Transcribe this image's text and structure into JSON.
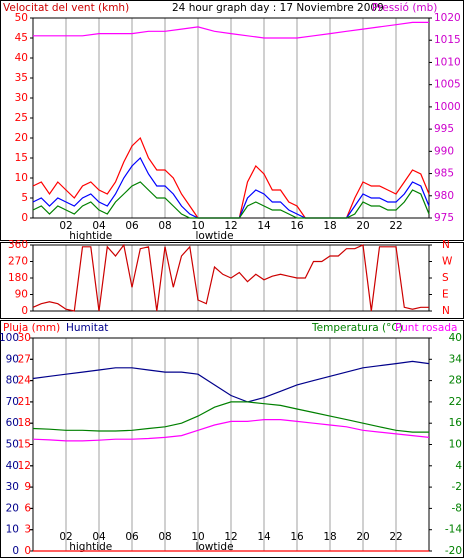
{
  "chart_data": [
    {
      "type": "line",
      "title": "24 hour graph day : 17 Noviembre 2009",
      "y_label": "Velocitat del vent (kmh)",
      "y2_label": "Pressió (mb)",
      "xlim": [
        0,
        24
      ],
      "xticks": [
        {
          "value": 2,
          "label": "02"
        },
        {
          "value": 4,
          "label": "04"
        },
        {
          "value": 6,
          "label": "06"
        },
        {
          "value": 8,
          "label": "08"
        },
        {
          "value": 10,
          "label": "10"
        },
        {
          "value": 12,
          "label": "12"
        },
        {
          "value": 14,
          "label": "14"
        },
        {
          "value": 16,
          "label": "16"
        },
        {
          "value": 18,
          "label": "18"
        },
        {
          "value": 20,
          "label": "20"
        },
        {
          "value": 22,
          "label": "22"
        }
      ],
      "ylim": [
        0,
        50
      ],
      "yticks": [
        0,
        5,
        10,
        15,
        20,
        25,
        30,
        35,
        40,
        45,
        50
      ],
      "y2lim": [
        975,
        1020
      ],
      "y2ticks": [
        975,
        980,
        985,
        990,
        995,
        1000,
        1005,
        1010,
        1015,
        1020
      ],
      "axis_colors": {
        "y": "#ff0000",
        "y2": "#cc00cc"
      },
      "grid": true,
      "annotations": [
        {
          "x": 3.5,
          "text": "hightide"
        },
        {
          "x": 11,
          "text": "lowtide"
        }
      ],
      "series": [
        {
          "color": "#ff0000",
          "x": [
            0,
            0.5,
            1,
            1.5,
            2,
            2.5,
            3,
            3.5,
            4,
            4.5,
            5,
            5.5,
            6,
            6.5,
            7,
            7.5,
            8,
            8.5,
            9,
            9.5,
            10,
            10.5,
            11,
            11.5,
            12,
            12.5,
            13,
            13.5,
            14,
            14.5,
            15,
            15.5,
            16,
            16.5,
            17,
            17.5,
            18,
            18.5,
            19,
            19.5,
            20,
            20.5,
            21,
            21.5,
            22,
            22.5,
            23,
            23.5,
            24
          ],
          "values": [
            8,
            9,
            6,
            9,
            7,
            5,
            8,
            9,
            7,
            6,
            9,
            14,
            18,
            20,
            15,
            12,
            12,
            10,
            6,
            3,
            0,
            0,
            0,
            0,
            0,
            0,
            9,
            13,
            11,
            7,
            7,
            4,
            3,
            0,
            0,
            0,
            0,
            0,
            0,
            5,
            9,
            8,
            8,
            7,
            6,
            9,
            12,
            11,
            6
          ]
        },
        {
          "color": "#0000ff",
          "x": [
            0,
            0.5,
            1,
            1.5,
            2,
            2.5,
            3,
            3.5,
            4,
            4.5,
            5,
            5.5,
            6,
            6.5,
            7,
            7.5,
            8,
            8.5,
            9,
            9.5,
            10,
            10.5,
            11,
            11.5,
            12,
            12.5,
            13,
            13.5,
            14,
            14.5,
            15,
            15.5,
            16,
            16.5,
            17,
            17.5,
            18,
            18.5,
            19,
            19.5,
            20,
            20.5,
            21,
            21.5,
            22,
            22.5,
            23,
            23.5,
            24
          ],
          "values": [
            4,
            5,
            3,
            5,
            4,
            3,
            5,
            6,
            4,
            3,
            6,
            10,
            13,
            15,
            11,
            8,
            8,
            6,
            3,
            1,
            0,
            0,
            0,
            0,
            0,
            0,
            5,
            7,
            6,
            4,
            4,
            2,
            1,
            0,
            0,
            0,
            0,
            0,
            0,
            3,
            6,
            5,
            5,
            4,
            4,
            6,
            9,
            8,
            3
          ]
        },
        {
          "color": "#008000",
          "x": [
            0,
            0.5,
            1,
            1.5,
            2,
            2.5,
            3,
            3.5,
            4,
            4.5,
            5,
            5.5,
            6,
            6.5,
            7,
            7.5,
            8,
            8.5,
            9,
            9.5,
            10,
            10.5,
            11,
            11.5,
            12,
            12.5,
            13,
            13.5,
            14,
            14.5,
            15,
            15.5,
            16,
            16.5,
            17,
            17.5,
            18,
            18.5,
            19,
            19.5,
            20,
            20.5,
            21,
            21.5,
            22,
            22.5,
            23,
            23.5,
            24
          ],
          "values": [
            2,
            3,
            1,
            3,
            2,
            1,
            3,
            4,
            2,
            1,
            4,
            6,
            8,
            9,
            7,
            5,
            5,
            3,
            1,
            0,
            0,
            0,
            0,
            0,
            0,
            0,
            3,
            4,
            3,
            2,
            2,
            1,
            0,
            0,
            0,
            0,
            0,
            0,
            0,
            1,
            4,
            3,
            3,
            2,
            2,
            4,
            7,
            6,
            1
          ]
        },
        {
          "color": "#ff00ff",
          "axis": "y2",
          "x": [
            0,
            1,
            2,
            3,
            4,
            5,
            6,
            7,
            8,
            9,
            10,
            11,
            12,
            13,
            14,
            15,
            16,
            17,
            18,
            19,
            20,
            21,
            22,
            23,
            24
          ],
          "values": [
            1016,
            1016,
            1016,
            1016,
            1016.5,
            1016.5,
            1016.5,
            1017,
            1017,
            1017.5,
            1018,
            1017,
            1016.5,
            1016,
            1015.5,
            1015.5,
            1015.5,
            1016,
            1016.5,
            1017,
            1017.5,
            1018,
            1018.5,
            1019,
            1019
          ]
        }
      ]
    },
    {
      "type": "line",
      "xlim": [
        0,
        24
      ],
      "ylim": [
        0,
        360
      ],
      "yticks": [
        0,
        90,
        180,
        270,
        360
      ],
      "y2lim": [
        0,
        360
      ],
      "y2ticks": [
        {
          "value": 0,
          "label": "N"
        },
        {
          "value": 90,
          "label": "E"
        },
        {
          "value": 180,
          "label": "S"
        },
        {
          "value": 270,
          "label": "W"
        },
        {
          "value": 360,
          "label": "N"
        }
      ],
      "axis_colors": {
        "y": "#ff0000",
        "y2": "#ff0000"
      },
      "grid": true,
      "series": [
        {
          "color": "#cc0000",
          "x": [
            0,
            0.5,
            1,
            1.5,
            2,
            2.5,
            3,
            3.5,
            4,
            4.5,
            5,
            5.5,
            6,
            6.5,
            7,
            7.5,
            8,
            8.5,
            9,
            9.5,
            10,
            10.5,
            11,
            11.5,
            12,
            12.5,
            13,
            13.5,
            14,
            14.5,
            15,
            15.5,
            16,
            16.5,
            17,
            17.5,
            18,
            18.5,
            19,
            19.5,
            20,
            20.5,
            21,
            21.5,
            22,
            22.5,
            23,
            23.5,
            24
          ],
          "values": [
            20,
            40,
            50,
            40,
            10,
            0,
            350,
            350,
            0,
            350,
            300,
            360,
            130,
            340,
            350,
            0,
            350,
            130,
            300,
            350,
            60,
            40,
            240,
            200,
            180,
            210,
            160,
            200,
            170,
            190,
            200,
            190,
            180,
            180,
            270,
            270,
            300,
            300,
            340,
            340,
            360,
            0,
            350,
            350,
            350,
            20,
            10,
            20,
            20
          ]
        }
      ]
    },
    {
      "type": "line",
      "xlim": [
        0,
        24
      ],
      "xticks": [
        {
          "value": 2,
          "label": "02"
        },
        {
          "value": 4,
          "label": "04"
        },
        {
          "value": 6,
          "label": "06"
        },
        {
          "value": 8,
          "label": "08"
        },
        {
          "value": 10,
          "label": "10"
        },
        {
          "value": 12,
          "label": "12"
        },
        {
          "value": 14,
          "label": "14"
        },
        {
          "value": 16,
          "label": "16"
        },
        {
          "value": 18,
          "label": "18"
        },
        {
          "value": 20,
          "label": "20"
        },
        {
          "value": 22,
          "label": "22"
        }
      ],
      "ylim": [
        0,
        100
      ],
      "yticks": [
        0,
        10,
        20,
        30,
        40,
        50,
        60,
        70,
        80,
        90,
        100
      ],
      "y3lim": [
        0,
        30
      ],
      "y3ticks": [
        0,
        3,
        6,
        9,
        12,
        15,
        18,
        21,
        24,
        27,
        30
      ],
      "y2lim": [
        -20,
        40
      ],
      "y2ticks": [
        -20,
        -14,
        -8,
        -2,
        4,
        10,
        16,
        22,
        28,
        34,
        40
      ],
      "axis_colors": {
        "y": "#00008b",
        "y3": "#ff0000",
        "y2": "#008000"
      },
      "grid": true,
      "annotations": [
        {
          "x": 3.5,
          "text": "hightide"
        },
        {
          "x": 11,
          "text": "lowtide"
        }
      ],
      "series": [
        {
          "name": "Pluja (mm)",
          "color": "#ff0000",
          "axis": "y3",
          "x": [
            0,
            1,
            2,
            3,
            4,
            5,
            6,
            7,
            8,
            9,
            10,
            11,
            12,
            13,
            14,
            15,
            16,
            17,
            18,
            19,
            20,
            21,
            22,
            23,
            24
          ],
          "values": [
            0,
            0,
            0,
            0,
            0,
            0,
            0,
            0,
            0,
            0,
            0,
            0,
            0,
            0,
            0,
            0,
            0,
            0,
            0,
            0,
            0,
            0,
            0,
            0,
            0
          ]
        },
        {
          "name": "Humitat",
          "color": "#00008b",
          "x": [
            0,
            1,
            2,
            3,
            4,
            5,
            6,
            7,
            8,
            9,
            10,
            11,
            12,
            13,
            14,
            15,
            16,
            17,
            18,
            19,
            20,
            21,
            22,
            23,
            24
          ],
          "values": [
            81,
            82,
            83,
            84,
            85,
            86,
            86,
            85,
            84,
            84,
            83,
            78,
            73,
            70,
            72,
            75,
            78,
            80,
            82,
            84,
            86,
            87,
            88,
            89,
            88
          ]
        },
        {
          "name": "Temperatura (°C)",
          "color": "#008000",
          "axis": "y2",
          "x": [
            0,
            1,
            2,
            3,
            4,
            5,
            6,
            7,
            8,
            9,
            10,
            11,
            12,
            13,
            14,
            15,
            16,
            17,
            18,
            19,
            20,
            21,
            22,
            23,
            24
          ],
          "values": [
            14.5,
            14.3,
            14,
            14,
            13.8,
            13.8,
            14,
            14.5,
            15,
            16,
            18,
            20.5,
            22,
            22,
            21.5,
            21,
            20,
            19,
            18,
            17,
            16,
            15,
            14,
            13.5,
            13.5
          ]
        },
        {
          "name": "Punt rosada",
          "color": "#ff00ff",
          "axis": "y2",
          "x": [
            0,
            1,
            2,
            3,
            4,
            5,
            6,
            7,
            8,
            9,
            10,
            11,
            12,
            13,
            14,
            15,
            16,
            17,
            18,
            19,
            20,
            21,
            22,
            23,
            24
          ],
          "values": [
            11.5,
            11.3,
            11,
            11,
            11.2,
            11.5,
            11.5,
            11.7,
            12,
            12.5,
            14,
            15.5,
            16.5,
            16.5,
            17,
            17,
            16.5,
            16,
            15.5,
            15,
            14,
            13.5,
            13,
            12.5,
            12
          ]
        }
      ]
    }
  ]
}
